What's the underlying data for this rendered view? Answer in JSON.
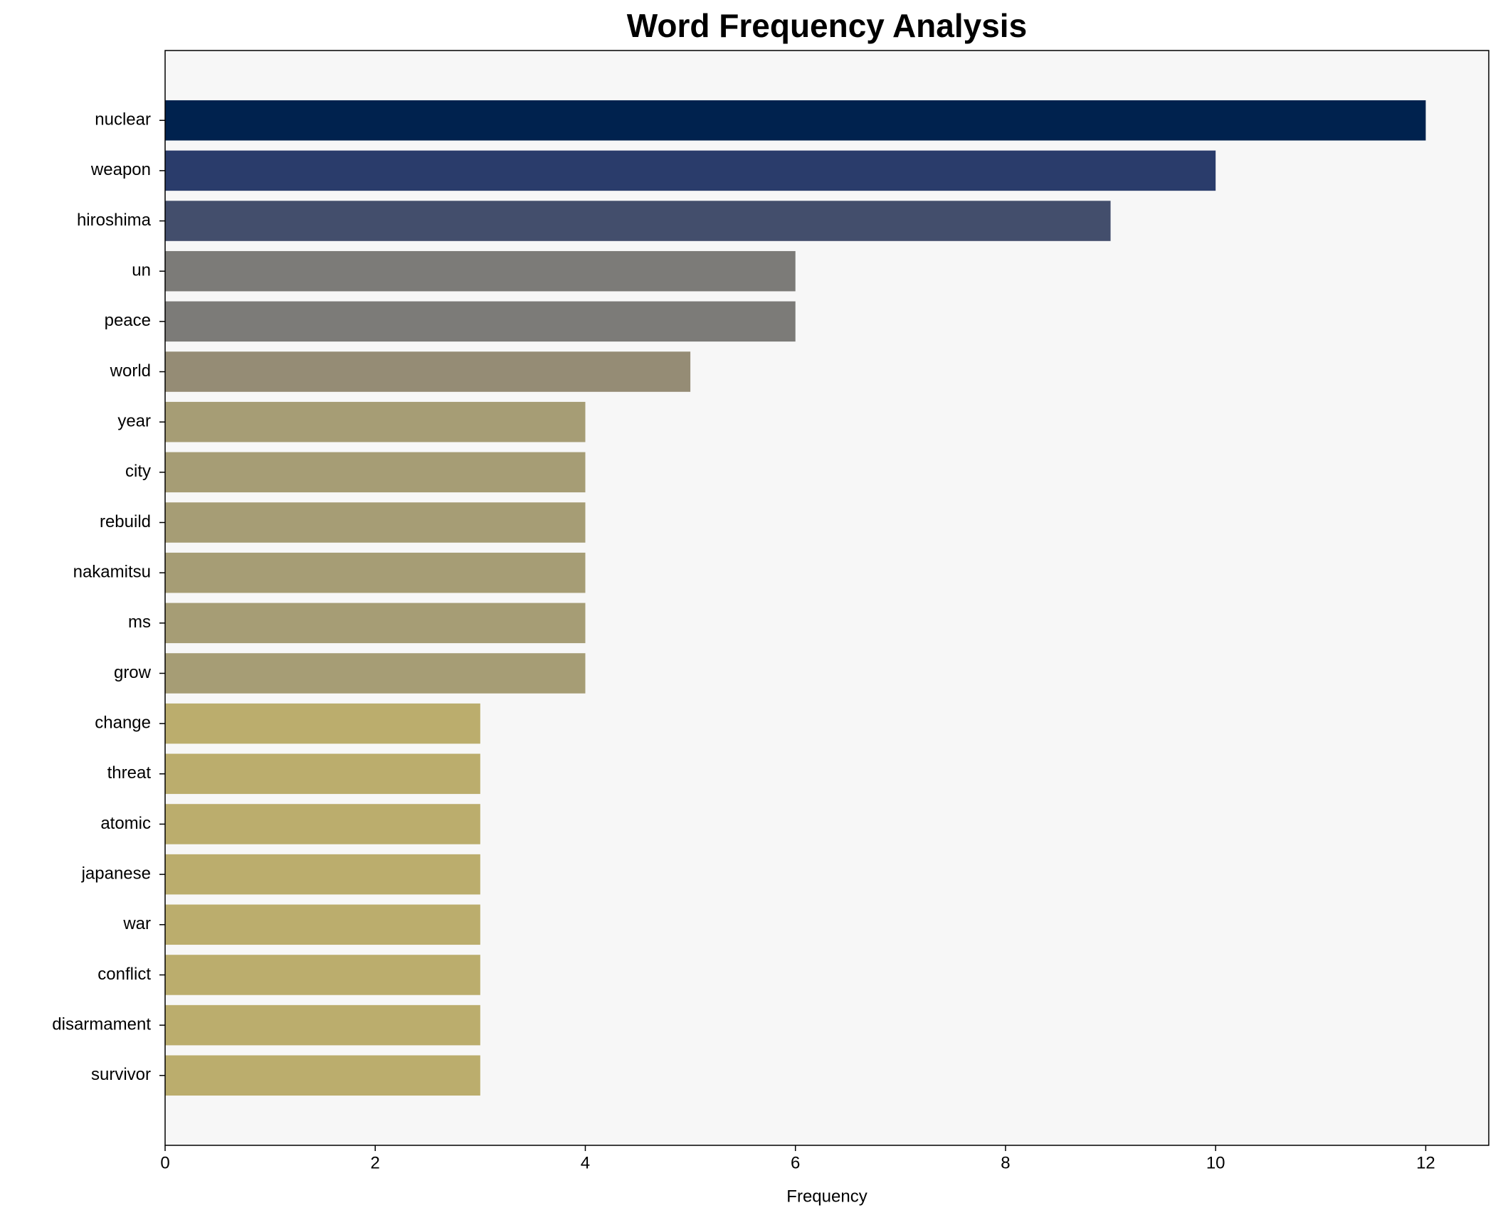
{
  "chart_data": {
    "type": "bar",
    "orientation": "horizontal",
    "title": "Word Frequency Analysis",
    "xlabel": "Frequency",
    "categories": [
      "nuclear",
      "weapon",
      "hiroshima",
      "un",
      "peace",
      "world",
      "year",
      "city",
      "rebuild",
      "nakamitsu",
      "ms",
      "grow",
      "change",
      "threat",
      "atomic",
      "japanese",
      "war",
      "conflict",
      "disarmament",
      "survivor"
    ],
    "values": [
      12,
      10,
      9,
      6,
      6,
      5,
      4,
      4,
      4,
      4,
      4,
      4,
      3,
      3,
      3,
      3,
      3,
      3,
      3,
      3
    ],
    "colors": [
      "#00224e",
      "#2a3c6b",
      "#434e6c",
      "#7c7b78",
      "#7c7b78",
      "#958c75",
      "#a69d75",
      "#a69d75",
      "#a69d75",
      "#a69d75",
      "#a69d75",
      "#a69d75",
      "#bbad6d",
      "#bbad6d",
      "#bbad6d",
      "#bbad6d",
      "#bbad6d",
      "#bbad6d",
      "#bbad6d",
      "#bbad6d"
    ],
    "xlim": [
      0,
      12.6
    ],
    "xticks": [
      0,
      2,
      4,
      6,
      8,
      10,
      12
    ]
  }
}
